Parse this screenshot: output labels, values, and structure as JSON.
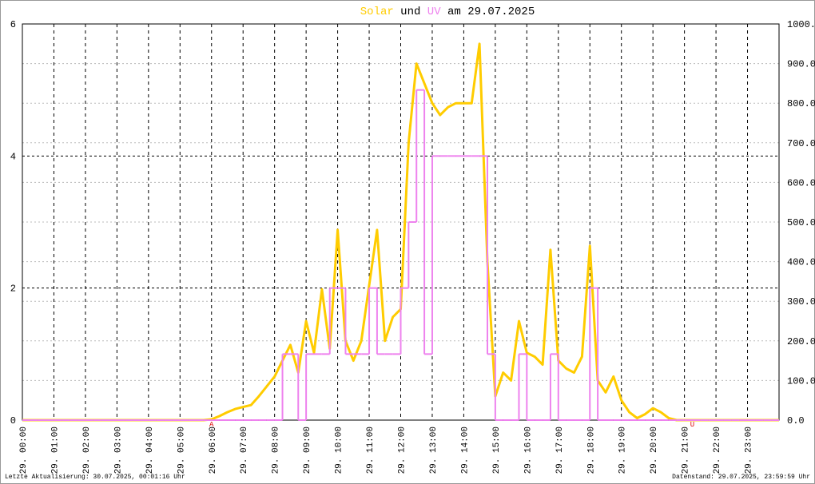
{
  "chart_data": {
    "type": "line",
    "title_word": "und",
    "title_date": "am 29.07.2025",
    "x": [
      0,
      0.25,
      0.5,
      0.75,
      1,
      1.25,
      1.5,
      1.75,
      2,
      2.25,
      2.5,
      2.75,
      3,
      3.25,
      3.5,
      3.75,
      4,
      4.25,
      4.5,
      4.75,
      5,
      5.25,
      5.5,
      5.75,
      6,
      6.25,
      6.5,
      6.75,
      7,
      7.25,
      7.5,
      7.75,
      8,
      8.25,
      8.5,
      8.75,
      9,
      9.25,
      9.5,
      9.75,
      10,
      10.25,
      10.5,
      10.75,
      11,
      11.25,
      11.5,
      11.75,
      12,
      12.25,
      12.5,
      12.75,
      13,
      13.25,
      13.5,
      13.75,
      14,
      14.25,
      14.5,
      14.75,
      15,
      15.25,
      15.5,
      15.75,
      16,
      16.25,
      16.5,
      16.75,
      17,
      17.25,
      17.5,
      17.75,
      18,
      18.25,
      18.5,
      18.75,
      19,
      19.25,
      19.5,
      19.75,
      20,
      20.25,
      20.5,
      20.75,
      21,
      21.25,
      21.5,
      21.75,
      22,
      22.25,
      22.5,
      22.75,
      23,
      23.25,
      23.5,
      23.75,
      24
    ],
    "series": [
      {
        "name": "Solar",
        "color": "#ffcc00",
        "axis": "y2",
        "values": [
          0,
          0,
          0,
          0,
          0,
          0,
          0,
          0,
          0,
          0,
          0,
          0,
          0,
          0,
          0,
          0,
          0,
          0,
          0,
          0,
          0,
          0,
          0,
          0,
          2,
          10,
          20,
          28,
          33,
          38,
          60,
          85,
          110,
          150,
          190,
          120,
          250,
          170,
          330,
          180,
          480,
          200,
          150,
          200,
          340,
          480,
          200,
          260,
          280,
          700,
          900,
          850,
          800,
          770,
          790,
          800,
          800,
          800,
          950,
          400,
          60,
          120,
          100,
          250,
          170,
          160,
          140,
          430,
          150,
          130,
          120,
          160,
          440,
          100,
          70,
          110,
          50,
          20,
          5,
          15,
          30,
          20,
          5,
          0,
          0,
          0,
          0,
          0,
          0,
          0,
          0,
          0,
          0,
          0,
          0,
          0,
          0
        ]
      },
      {
        "name": "UV",
        "color": "#ee82ee",
        "step": true,
        "values": [
          0,
          0,
          0,
          0,
          0,
          0,
          0,
          0,
          0,
          0,
          0,
          0,
          0,
          0,
          0,
          0,
          0,
          0,
          0,
          0,
          0,
          0,
          0,
          0,
          0,
          0,
          0,
          0,
          0,
          0,
          0,
          0,
          0,
          1,
          1,
          0,
          1,
          1,
          1,
          2,
          2,
          1,
          1,
          1,
          2,
          1,
          1,
          1,
          2,
          3,
          5,
          1,
          4,
          4,
          4,
          4,
          4,
          4,
          4,
          1,
          0,
          0,
          0,
          1,
          0,
          0,
          0,
          1,
          0,
          0,
          0,
          0,
          2,
          0,
          0,
          0,
          0,
          0,
          0,
          0,
          0,
          0,
          0,
          0,
          0,
          0,
          0,
          0,
          0,
          0,
          0,
          0,
          0,
          0,
          0,
          0,
          0
        ]
      }
    ],
    "xlim": [
      0,
      24
    ],
    "xticks": [
      {
        "value": 0,
        "label": "29. 00:00"
      },
      {
        "value": 1,
        "label": "29. 01:00"
      },
      {
        "value": 2,
        "label": "29. 02:00"
      },
      {
        "value": 3,
        "label": "29. 03:00"
      },
      {
        "value": 4,
        "label": "29. 04:00"
      },
      {
        "value": 5,
        "label": "29. 05:00"
      },
      {
        "value": 6,
        "label": "29. 06:00"
      },
      {
        "value": 7,
        "label": "29. 07:00"
      },
      {
        "value": 8,
        "label": "29. 08:00"
      },
      {
        "value": 9,
        "label": "29. 09:00"
      },
      {
        "value": 10,
        "label": "29. 10:00"
      },
      {
        "value": 11,
        "label": "29. 11:00"
      },
      {
        "value": 12,
        "label": "29. 12:00"
      },
      {
        "value": 13,
        "label": "29. 13:00"
      },
      {
        "value": 14,
        "label": "29. 14:00"
      },
      {
        "value": 15,
        "label": "29. 15:00"
      },
      {
        "value": 16,
        "label": "29. 16:00"
      },
      {
        "value": 17,
        "label": "29. 17:00"
      },
      {
        "value": 18,
        "label": "29. 18:00"
      },
      {
        "value": 19,
        "label": "29. 19:00"
      },
      {
        "value": 20,
        "label": "29. 20:00"
      },
      {
        "value": 21,
        "label": "29. 21:00"
      },
      {
        "value": 22,
        "label": "29. 22:00"
      },
      {
        "value": 23,
        "label": "29. 23:00"
      }
    ],
    "ylim": [
      0,
      6
    ],
    "yticks": [
      0,
      2,
      4,
      6
    ],
    "y2lim": [
      0,
      1000
    ],
    "y2ticks": [
      {
        "value": 0,
        "label": "0.0"
      },
      {
        "value": 100,
        "label": "100.0"
      },
      {
        "value": 200,
        "label": "200.0"
      },
      {
        "value": 300,
        "label": "300.0"
      },
      {
        "value": 400,
        "label": "400.0"
      },
      {
        "value": 500,
        "label": "500.0"
      },
      {
        "value": 600,
        "label": "600.0"
      },
      {
        "value": 700,
        "label": "700.0"
      },
      {
        "value": 800,
        "label": "800.0"
      },
      {
        "value": 900,
        "label": "900.0"
      },
      {
        "value": 1000,
        "label": "1000.0"
      }
    ],
    "grid": true,
    "markers": [
      {
        "x": 6,
        "label": "A"
      },
      {
        "x": 21.25,
        "label": "U"
      }
    ],
    "footer_left": "Letzte Aktualisierung: 30.07.2025, 00:01:16 Uhr",
    "footer_right": "Datenstand: 29.07.2025, 23:59:59 Uhr"
  }
}
